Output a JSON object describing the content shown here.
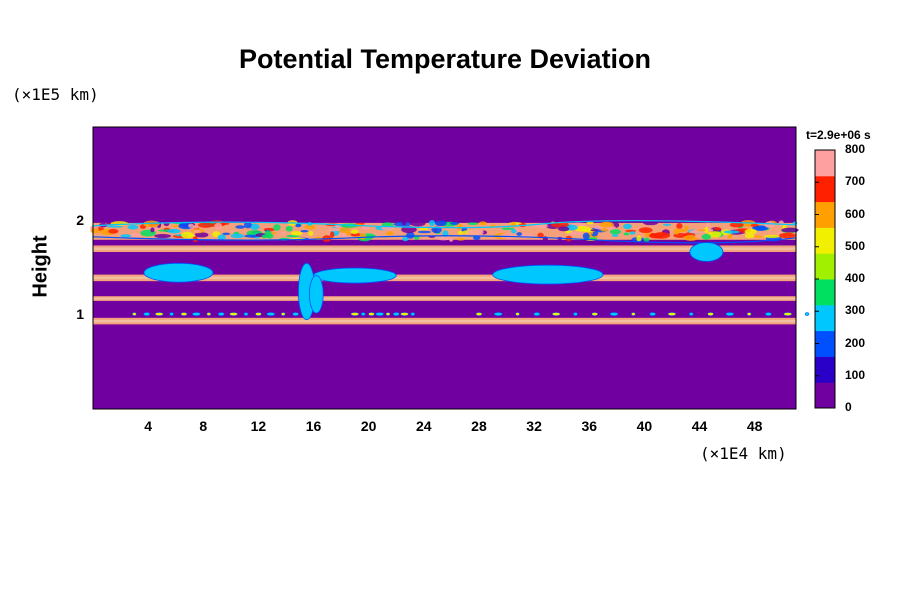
{
  "chart_data": {
    "type": "heatmap",
    "title": "Potential Temperature Deviation",
    "ylabel": "Height",
    "y_unit": "(×1E5 km)",
    "x_unit": "(×1E4 km)",
    "time_label": "t=2.9e+06 s",
    "xlim": [
      0,
      51
    ],
    "ylim": [
      0,
      3
    ],
    "x_ticks": [
      "4",
      "8",
      "12",
      "16",
      "20",
      "24",
      "28",
      "32",
      "36",
      "40",
      "44",
      "48"
    ],
    "y_ticks": [
      "1",
      "2"
    ],
    "colorbar_ticks": [
      "0",
      "100",
      "200",
      "300",
      "400",
      "500",
      "600",
      "700",
      "800"
    ],
    "colorbar_range": [
      0,
      800
    ],
    "background_value": 0,
    "bands": [
      {
        "y_min": 0.9,
        "y_max": 0.97,
        "value": 800,
        "name": "band-0.93"
      },
      {
        "y_min": 1.15,
        "y_max": 1.2,
        "value": 800,
        "name": "band-1.18"
      },
      {
        "y_min": 1.36,
        "y_max": 1.43,
        "value": 800,
        "name": "band-1.40"
      },
      {
        "y_min": 1.67,
        "y_max": 1.74,
        "value": 800,
        "name": "band-1.70"
      },
      {
        "y_min": 1.8,
        "y_max": 1.98,
        "value": 800,
        "name": "turbulent-layer"
      }
    ]
  },
  "colors": {
    "background": "#7000a0",
    "band_fill": "#f4a07a",
    "band_core": "#f0c0a0",
    "colormap": [
      "#7000a0",
      "#2a00c8",
      "#0050ff",
      "#00c8ff",
      "#00e060",
      "#a0f000",
      "#f0f000",
      "#ffa000",
      "#ff2000",
      "#ffa0a0"
    ]
  }
}
